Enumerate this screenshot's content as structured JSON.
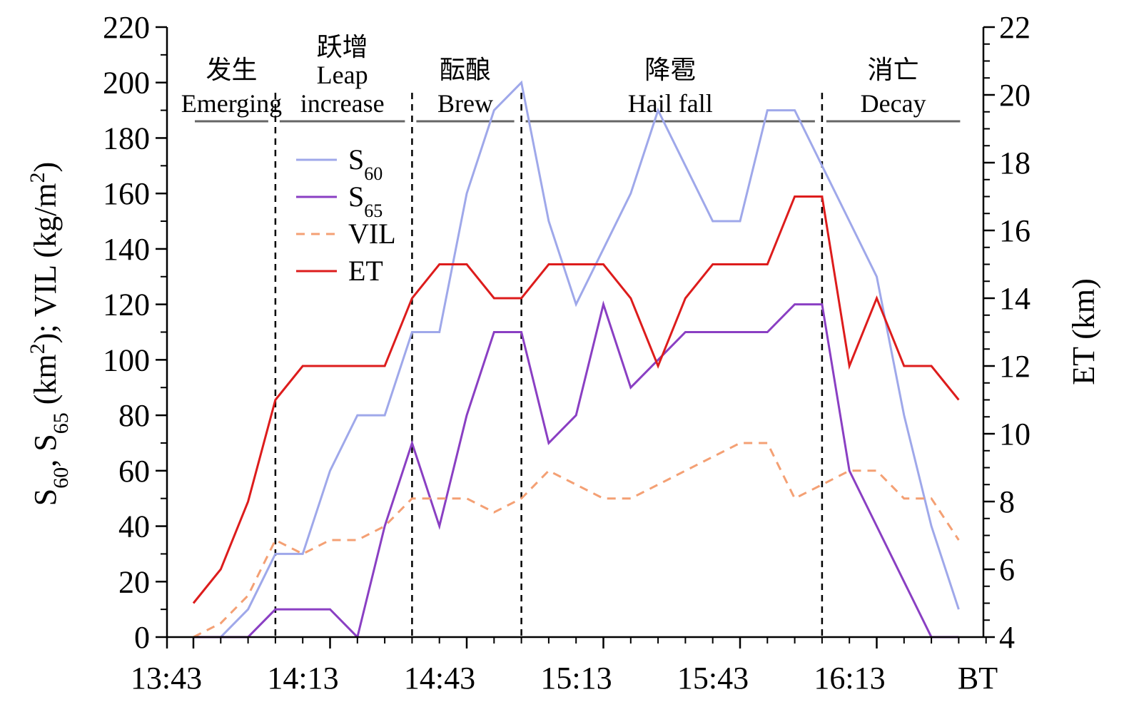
{
  "chart_data": {
    "type": "line",
    "title": "",
    "xlabel": "BT",
    "ylabel_left": "S60, S65 (km2); VIL (kg/m2)",
    "ylabel_left_parts": {
      "s": "S",
      "sub60": "60",
      "sep1": ", ",
      "sub65": "65",
      "unit1a": " (km",
      "sup2a": "2",
      "unit1b": "); VIL (kg/m",
      "sup2b": "2",
      "unit1c": ")"
    },
    "ylabel_right": "ET (km)",
    "x_start": "13:43",
    "x_step_minutes": 6,
    "x_ticks": [
      "13:43",
      "14:13",
      "14:43",
      "15:13",
      "15:43",
      "16:13",
      "BT"
    ],
    "ylim_left": [
      0,
      220
    ],
    "ylim_right": [
      4,
      22
    ],
    "yticks_left": [
      0,
      20,
      40,
      60,
      80,
      100,
      120,
      140,
      160,
      180,
      200,
      220
    ],
    "yticks_right": [
      4,
      6,
      8,
      10,
      12,
      14,
      16,
      18,
      20,
      22
    ],
    "phases": [
      {
        "zh": "发生",
        "en": "Emerging",
        "en2": ""
      },
      {
        "zh": "跃增",
        "en": "Leap",
        "en2": "increase"
      },
      {
        "zh": "酝酿",
        "en": "Brew",
        "en2": ""
      },
      {
        "zh": "降雹",
        "en": "Hail fall",
        "en2": ""
      },
      {
        "zh": "消亡",
        "en": "Decay",
        "en2": ""
      }
    ],
    "phase_boundaries": [
      3,
      8,
      12,
      23
    ],
    "series": [
      {
        "name": "S60",
        "label_main": "S",
        "label_sub": "60",
        "axis": "left",
        "color": "#9fa8ea",
        "dash": "",
        "values": [
          0,
          0,
          10,
          30,
          30,
          60,
          80,
          80,
          110,
          110,
          160,
          190,
          200,
          150,
          120,
          140,
          160,
          190,
          170,
          150,
          150,
          190,
          190,
          170,
          150,
          130,
          80,
          40,
          10
        ]
      },
      {
        "name": "S65",
        "label_main": "S",
        "label_sub": "65",
        "axis": "left",
        "color": "#8a3fc3",
        "dash": "",
        "values": [
          0,
          0,
          0,
          10,
          10,
          10,
          0,
          40,
          70,
          40,
          80,
          110,
          110,
          70,
          80,
          120,
          90,
          100,
          110,
          110,
          110,
          110,
          120,
          120,
          60,
          40,
          20,
          0,
          0
        ]
      },
      {
        "name": "VIL",
        "label_main": "VIL",
        "label_sub": "",
        "axis": "left",
        "color": "#f4a074",
        "dash": "12,9",
        "values": [
          0,
          5,
          15,
          35,
          30,
          35,
          35,
          40,
          50,
          50,
          50,
          45,
          50,
          60,
          55,
          50,
          50,
          55,
          60,
          65,
          70,
          70,
          50,
          55,
          60,
          60,
          50,
          50,
          35
        ]
      },
      {
        "name": "ET",
        "label_main": "ET",
        "label_sub": "",
        "axis": "right",
        "color": "#dd1c1c",
        "dash": "",
        "values": [
          5,
          6,
          8,
          11,
          12,
          12,
          12,
          12,
          14,
          15,
          15,
          14,
          14,
          15,
          15,
          15,
          14,
          12,
          14,
          15,
          15,
          15,
          17,
          17,
          12,
          14,
          12,
          12,
          11
        ]
      }
    ],
    "legend_position": "upper-left"
  }
}
